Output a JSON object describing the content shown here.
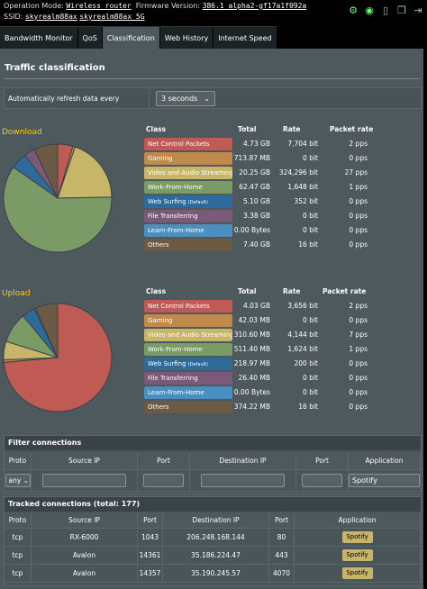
{
  "topbar": {
    "op_mode_label": "Operation Mode:",
    "op_mode_value": "Wireless router",
    "fw_label": "Firmware Version:",
    "fw_value": "386.1_alpha2-gf17a1f092a",
    "ssid_label": "SSID:",
    "ssid_1": "skyrealm88ax",
    "ssid_2": "skyrealm88ax_5G",
    "icons": [
      "settings-gear-icon",
      "wifi-icon",
      "usb-icon",
      "copy-icon",
      "logout-icon"
    ]
  },
  "tabs": [
    {
      "label": "Bandwidth Monitor"
    },
    {
      "label": "QoS"
    },
    {
      "label": "Classification"
    },
    {
      "label": "Web History"
    },
    {
      "label": "Internet Speed"
    }
  ],
  "panel": {
    "title": "Traffic classification",
    "refresh_label": "Automatically refresh data every",
    "refresh_value": "3 seconds"
  },
  "colors": {
    "net_control": "#c05a54",
    "gaming": "#c08a4a",
    "video_audio": "#c7b66a",
    "work": "#7a9a66",
    "web": "#2e6b9a",
    "file": "#7a5a78",
    "learn": "#4a8fc0",
    "others": "#6d5a44"
  },
  "download": {
    "label": "Download",
    "headers": {
      "cls": "Class",
      "total": "Total",
      "rate": "Rate",
      "pkt": "Packet rate"
    },
    "rows": [
      {
        "name": "Net Control Packets",
        "total": "4.73 GB",
        "rate": "7,704 bit",
        "pkt": "2 pps",
        "color": "#c05a54"
      },
      {
        "name": "Gaming",
        "total": "713.87 MB",
        "rate": "0 bit",
        "pkt": "0 pps",
        "color": "#c08a4a"
      },
      {
        "name": "Video and Audio Streaming",
        "total": "20.25 GB",
        "rate": "324,296 bit",
        "pkt": "27 pps",
        "color": "#c7b66a"
      },
      {
        "name": "Work-From-Home",
        "total": "62.47 GB",
        "rate": "1,648 bit",
        "pkt": "1 pps",
        "color": "#7a9a66"
      },
      {
        "name": "Web Surfing",
        "sub": "(Default)",
        "total": "5.10 GB",
        "rate": "352 bit",
        "pkt": "0 pps",
        "color": "#2e6b9a"
      },
      {
        "name": "File Transferring",
        "total": "3.38 GB",
        "rate": "0 bit",
        "pkt": "0 pps",
        "color": "#7a5a78"
      },
      {
        "name": "Learn-From-Home",
        "total": "0.00 Bytes",
        "rate": "0 bit",
        "pkt": "0 pps",
        "color": "#4a8fc0"
      },
      {
        "name": "Others",
        "total": "7.40 GB",
        "rate": "16 bit",
        "pkt": "0 pps",
        "color": "#6d5a44"
      }
    ]
  },
  "upload": {
    "label": "Upload",
    "headers": {
      "cls": "Class",
      "total": "Total",
      "rate": "Rate",
      "pkt": "Packet rate"
    },
    "rows": [
      {
        "name": "Net Control Packets",
        "total": "4.03 GB",
        "rate": "3,656 bit",
        "pkt": "2 pps",
        "color": "#c05a54"
      },
      {
        "name": "Gaming",
        "total": "42.03 MB",
        "rate": "0 bit",
        "pkt": "0 pps",
        "color": "#c08a4a"
      },
      {
        "name": "Video and Audio Streaming",
        "total": "310.60 MB",
        "rate": "4,144 bit",
        "pkt": "7 pps",
        "color": "#c7b66a"
      },
      {
        "name": "Work-From-Home",
        "total": "511.40 MB",
        "rate": "1,624 bit",
        "pkt": "1 pps",
        "color": "#7a9a66"
      },
      {
        "name": "Web Surfing",
        "sub": "(Default)",
        "total": "218.97 MB",
        "rate": "200 bit",
        "pkt": "0 pps",
        "color": "#2e6b9a"
      },
      {
        "name": "File Transferring",
        "total": "26.40 MB",
        "rate": "0 bit",
        "pkt": "0 pps",
        "color": "#7a5a78"
      },
      {
        "name": "Learn-From-Home",
        "total": "0.00 Bytes",
        "rate": "0 bit",
        "pkt": "0 pps",
        "color": "#4a8fc0"
      },
      {
        "name": "Others",
        "total": "374.22 MB",
        "rate": "16 bit",
        "pkt": "0 pps",
        "color": "#6d5a44"
      }
    ]
  },
  "pie_values": {
    "download_gb": [
      4.73,
      0.714,
      20.25,
      62.47,
      5.1,
      3.38,
      0,
      7.4
    ],
    "upload_mb": [
      4127,
      42.03,
      310.6,
      511.4,
      218.97,
      26.4,
      0,
      374.22
    ]
  },
  "filter": {
    "title": "Filter connections",
    "headers": [
      "Proto",
      "Source IP",
      "Port",
      "Destination IP",
      "Port",
      "Application"
    ],
    "proto_value": "any",
    "app_value": "Spotify"
  },
  "tracked": {
    "title": "Tracked connections (total: 177)",
    "headers": [
      "Proto",
      "Source IP",
      "Port",
      "Destination IP",
      "Port",
      "Application"
    ],
    "rows": [
      {
        "proto": "tcp",
        "src": "RX-6000",
        "sport": "1043",
        "dst": "206.248.168.144",
        "dport": "80",
        "app": "Spotify"
      },
      {
        "proto": "tcp",
        "src": "Avalon",
        "sport": "14361",
        "dst": "35.186.224.47",
        "dport": "443",
        "app": "Spotify"
      },
      {
        "proto": "tcp",
        "src": "Avalon",
        "sport": "14357",
        "dst": "35.190.245.57",
        "dport": "4070",
        "app": "Spotify"
      }
    ]
  }
}
